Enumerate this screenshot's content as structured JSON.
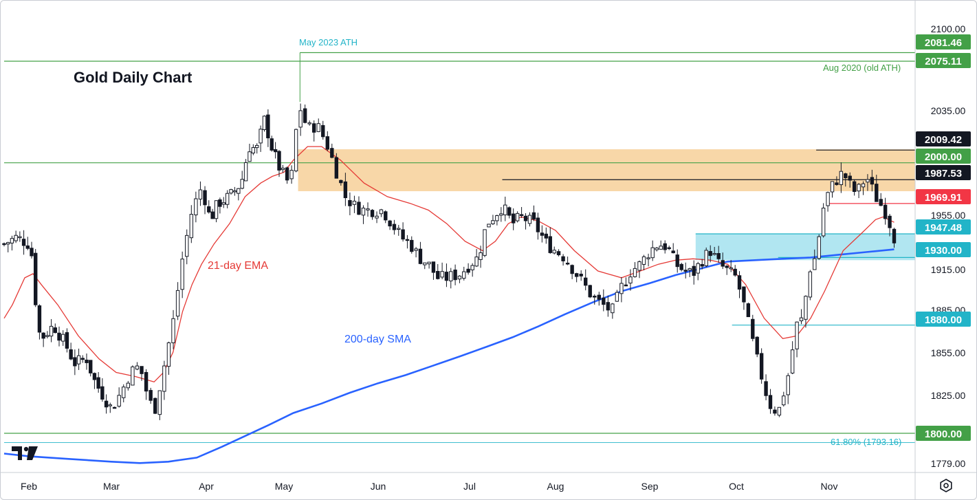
{
  "title": "Gold Daily Chart",
  "annotations": {
    "ema_label": "21-day EMA",
    "sma_label": "200-day SMA",
    "ath_label": "May 2023 ATH",
    "old_ath_label": "Aug 2020 (old ATH)",
    "fib_label": "61.80% (1793.16)"
  },
  "icons": {
    "logo": "tradingview-logo-icon",
    "settings": "settings-gear-icon"
  },
  "colors": {
    "candle_up": "#ffffff",
    "candle_down": "#131722",
    "ema": "#e53935",
    "sma": "#2962ff",
    "zone_resistance": "#f6ca8b",
    "zone_support": "#a8e3ef",
    "line_green": "#43a047",
    "label_red": "#f23645",
    "label_teal": "#22b4c8",
    "label_green": "#43a047",
    "label_black": "#131722"
  },
  "chart_data": {
    "type": "candlestick",
    "title": "Gold Daily Chart",
    "x_axis": {
      "labels": [
        "Feb",
        "Mar",
        "Apr",
        "May",
        "Jun",
        "Jul",
        "Aug",
        "Sep",
        "Oct",
        "Nov"
      ]
    },
    "y_axis": {
      "ticks": [
        2100.0,
        2035.0,
        1955.0,
        1915.0,
        1885.0,
        1855.0,
        1825.0,
        1779.0
      ],
      "range": [
        1774,
        2112
      ]
    },
    "price_labels": [
      {
        "value": 2081.46,
        "text": "2081.46",
        "color": "#43a047"
      },
      {
        "value": 2075.11,
        "text": "2075.11",
        "color": "#43a047"
      },
      {
        "value": 2009.42,
        "text": "2009.42",
        "color": "#131722"
      },
      {
        "value": 2000.0,
        "text": "2000.00",
        "color": "#43a047"
      },
      {
        "value": 1987.53,
        "text": "1987.53",
        "color": "#131722"
      },
      {
        "value": 1969.91,
        "text": "1969.91",
        "color": "#f23645"
      },
      {
        "value": 1947.48,
        "text": "1947.48",
        "color": "#22b4c8"
      },
      {
        "value": 1930.0,
        "text": "1930.00",
        "color": "#22b4c8"
      },
      {
        "value": 1880.0,
        "text": "1880.00",
        "color": "#22b4c8"
      },
      {
        "value": 1800.0,
        "text": "1800.00",
        "color": "#43a047"
      }
    ],
    "zones": [
      {
        "name": "resistance",
        "from": 1979,
        "to": 2010,
        "start_month": 3.15,
        "color": "#f6ca8b"
      },
      {
        "name": "support",
        "from": 1928,
        "to": 1947.48,
        "start_month": 7.53,
        "color": "#a8e3ef"
      }
    ],
    "lines": [
      {
        "value": 2081.46,
        "from_month": 3.17,
        "color": "#43a047"
      },
      {
        "value": 2075.11,
        "from_month": -0.3,
        "color": "#43a047"
      },
      {
        "value": 2009.42,
        "from_month": 8.86,
        "color": "#131722"
      },
      {
        "value": 2000.0,
        "from_month": -0.3,
        "color": "#43a047"
      },
      {
        "value": 1987.53,
        "from_month": 5.38,
        "color": "#131722"
      },
      {
        "value": 1969.91,
        "from_month": 9.0,
        "color": "#f23645"
      },
      {
        "value": 1947.48,
        "from_month": 7.53,
        "color": "#22b4c8"
      },
      {
        "value": 1930.0,
        "from_month": 8.45,
        "color": "#22b4c8"
      },
      {
        "value": 1880.0,
        "from_month": 7.95,
        "color": "#22b4c8"
      },
      {
        "value": 1800.0,
        "from_month": -0.3,
        "color": "#43a047"
      },
      {
        "value": 1793.16,
        "from_month": -0.3,
        "color": "#22b4c8",
        "thin": true
      }
    ],
    "price_path": [
      [
        -0.3,
        1940
      ],
      [
        -0.15,
        1945
      ],
      [
        0.0,
        1940
      ],
      [
        0.05,
        1928
      ],
      [
        0.1,
        1880
      ],
      [
        0.15,
        1870
      ],
      [
        0.3,
        1880
      ],
      [
        0.45,
        1865
      ],
      [
        0.55,
        1852
      ],
      [
        0.7,
        1855
      ],
      [
        0.8,
        1838
      ],
      [
        0.9,
        1828
      ],
      [
        1.0,
        1818
      ],
      [
        1.1,
        1830
      ],
      [
        1.2,
        1845
      ],
      [
        1.3,
        1850
      ],
      [
        1.35,
        1835
      ],
      [
        1.45,
        1815
      ],
      [
        1.55,
        1848
      ],
      [
        1.65,
        1882
      ],
      [
        1.75,
        1930
      ],
      [
        1.85,
        1965
      ],
      [
        1.95,
        1982
      ],
      [
        2.05,
        1958
      ],
      [
        2.15,
        1970
      ],
      [
        2.3,
        1975
      ],
      [
        2.45,
        1985
      ],
      [
        2.55,
        2012
      ],
      [
        2.65,
        2010
      ],
      [
        2.75,
        2032
      ],
      [
        2.85,
        2010
      ],
      [
        2.95,
        1995
      ],
      [
        3.05,
        1985
      ],
      [
        3.1,
        1995
      ],
      [
        3.15,
        2045
      ],
      [
        3.25,
        2025
      ],
      [
        3.35,
        2028
      ],
      [
        3.45,
        2015
      ],
      [
        3.55,
        1995
      ],
      [
        3.65,
        1975
      ],
      [
        3.75,
        1968
      ],
      [
        3.85,
        1965
      ],
      [
        3.95,
        1965
      ],
      [
        4.05,
        1965
      ],
      [
        4.15,
        1955
      ],
      [
        4.25,
        1945
      ],
      [
        4.35,
        1940
      ],
      [
        4.45,
        1930
      ],
      [
        4.55,
        1925
      ],
      [
        4.65,
        1915
      ],
      [
        4.75,
        1915
      ],
      [
        4.9,
        1918
      ],
      [
        5.0,
        1925
      ],
      [
        5.1,
        1930
      ],
      [
        5.2,
        1955
      ],
      [
        5.3,
        1962
      ],
      [
        5.38,
        1968
      ],
      [
        5.5,
        1955
      ],
      [
        5.6,
        1960
      ],
      [
        5.75,
        1955
      ],
      [
        5.9,
        1940
      ],
      [
        6.0,
        1935
      ],
      [
        6.1,
        1930
      ],
      [
        6.2,
        1920
      ],
      [
        6.3,
        1910
      ],
      [
        6.4,
        1900
      ],
      [
        6.5,
        1895
      ],
      [
        6.6,
        1890
      ],
      [
        6.7,
        1908
      ],
      [
        6.8,
        1920
      ],
      [
        6.9,
        1925
      ],
      [
        7.0,
        1935
      ],
      [
        7.1,
        1940
      ],
      [
        7.2,
        1938
      ],
      [
        7.3,
        1925
      ],
      [
        7.4,
        1920
      ],
      [
        7.5,
        1918
      ],
      [
        7.6,
        1928
      ],
      [
        7.7,
        1935
      ],
      [
        7.8,
        1925
      ],
      [
        7.9,
        1920
      ],
      [
        8.0,
        1915
      ],
      [
        8.1,
        1890
      ],
      [
        8.2,
        1860
      ],
      [
        8.3,
        1835
      ],
      [
        8.35,
        1822
      ],
      [
        8.45,
        1815
      ],
      [
        8.55,
        1840
      ],
      [
        8.6,
        1860
      ],
      [
        8.65,
        1880
      ],
      [
        8.72,
        1885
      ],
      [
        8.78,
        1920
      ],
      [
        8.85,
        1930
      ],
      [
        8.9,
        1950
      ],
      [
        8.95,
        1972
      ],
      [
        9.05,
        1985
      ],
      [
        9.15,
        1993
      ],
      [
        9.25,
        1980
      ],
      [
        9.3,
        1978
      ],
      [
        9.4,
        1990
      ],
      [
        9.5,
        1975
      ],
      [
        9.62,
        1962
      ],
      [
        9.7,
        1945
      ]
    ],
    "ema_21": [
      [
        -0.3,
        1885
      ],
      [
        -0.2,
        1895
      ],
      [
        -0.05,
        1915
      ],
      [
        0.05,
        1918
      ],
      [
        0.15,
        1910
      ],
      [
        0.35,
        1895
      ],
      [
        0.6,
        1872
      ],
      [
        0.85,
        1855
      ],
      [
        1.05,
        1845
      ],
      [
        1.25,
        1842
      ],
      [
        1.45,
        1838
      ],
      [
        1.55,
        1845
      ],
      [
        1.65,
        1860
      ],
      [
        1.75,
        1890
      ],
      [
        1.85,
        1910
      ],
      [
        1.95,
        1925
      ],
      [
        2.1,
        1940
      ],
      [
        2.3,
        1955
      ],
      [
        2.5,
        1975
      ],
      [
        2.7,
        1985
      ],
      [
        2.85,
        1990
      ],
      [
        3.0,
        1993
      ],
      [
        3.1,
        2002
      ],
      [
        3.25,
        2012
      ],
      [
        3.4,
        2012
      ],
      [
        3.6,
        2002
      ],
      [
        3.85,
        1985
      ],
      [
        4.1,
        1975
      ],
      [
        4.35,
        1970
      ],
      [
        4.55,
        1965
      ],
      [
        4.75,
        1955
      ],
      [
        4.95,
        1942
      ],
      [
        5.15,
        1935
      ],
      [
        5.3,
        1942
      ],
      [
        5.45,
        1955
      ],
      [
        5.6,
        1960
      ],
      [
        5.8,
        1957
      ],
      [
        6.0,
        1950
      ],
      [
        6.2,
        1935
      ],
      [
        6.45,
        1920
      ],
      [
        6.7,
        1915
      ],
      [
        6.9,
        1920
      ],
      [
        7.1,
        1925
      ],
      [
        7.3,
        1928
      ],
      [
        7.5,
        1929
      ],
      [
        7.7,
        1928
      ],
      [
        7.9,
        1925
      ],
      [
        8.1,
        1910
      ],
      [
        8.3,
        1885
      ],
      [
        8.5,
        1870
      ],
      [
        8.65,
        1872
      ],
      [
        8.8,
        1885
      ],
      [
        8.95,
        1905
      ],
      [
        9.15,
        1935
      ],
      [
        9.35,
        1948
      ],
      [
        9.5,
        1958
      ],
      [
        9.58,
        1960
      ],
      [
        9.7,
        1956
      ]
    ],
    "sma_200": [
      [
        -0.3,
        1785
      ],
      [
        0.0,
        1783
      ],
      [
        0.5,
        1781
      ],
      [
        1.0,
        1779
      ],
      [
        1.3,
        1778
      ],
      [
        1.6,
        1779
      ],
      [
        1.9,
        1782
      ],
      [
        2.2,
        1790
      ],
      [
        2.5,
        1798
      ],
      [
        2.8,
        1806
      ],
      [
        3.1,
        1815
      ],
      [
        3.4,
        1822
      ],
      [
        3.7,
        1830
      ],
      [
        4.0,
        1837
      ],
      [
        4.3,
        1843
      ],
      [
        4.6,
        1850
      ],
      [
        4.9,
        1857
      ],
      [
        5.2,
        1864
      ],
      [
        5.5,
        1871
      ],
      [
        5.8,
        1879
      ],
      [
        6.1,
        1888
      ],
      [
        6.4,
        1897
      ],
      [
        6.7,
        1905
      ],
      [
        7.0,
        1911
      ],
      [
        7.3,
        1917
      ],
      [
        7.6,
        1922
      ],
      [
        7.9,
        1927
      ],
      [
        8.2,
        1928
      ],
      [
        8.5,
        1929
      ],
      [
        8.8,
        1930
      ],
      [
        9.1,
        1932
      ],
      [
        9.4,
        1934
      ],
      [
        9.7,
        1936
      ]
    ]
  }
}
